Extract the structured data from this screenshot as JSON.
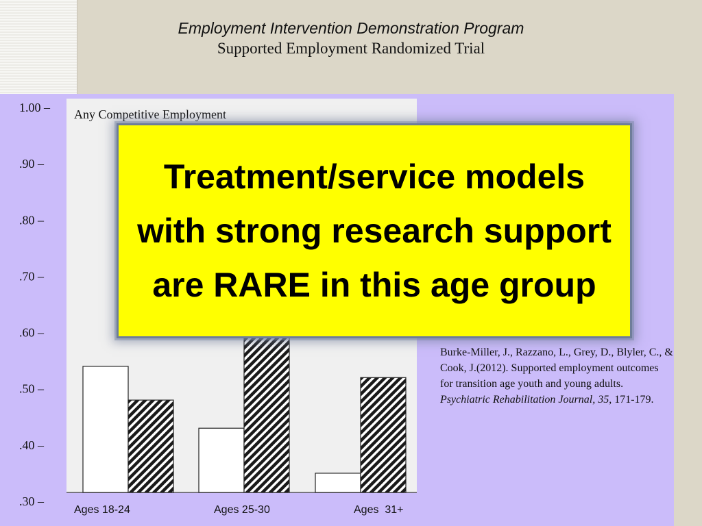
{
  "title": {
    "line1": "Employment Intervention Demonstration Program",
    "line2": "Supported Employment Randomized Trial"
  },
  "callout": {
    "text": "Treatment/service models with strong research support are RARE in this age group"
  },
  "citation": {
    "authors": "Burke-Miller, J., Razzano, L., Grey, D., Blyler, C., & Cook, J.(2012). Supported employment outcomes for transition age youth and young adults.",
    "journal": "Psychiatric Rehabilitation Journal, 35",
    "pages": ", 171-179."
  },
  "chart_data": {
    "type": "bar",
    "title": "Any Competitive Employment",
    "categories": [
      "Ages 18-24",
      "Ages 25-30",
      "Ages  31+"
    ],
    "series": [
      {
        "values": [
          0.54,
          0.43,
          0.35
        ],
        "fill": "#ffffff"
      },
      {
        "values": [
          0.48,
          0.6,
          0.52
        ],
        "fill": "hatch"
      }
    ],
    "y_ticks": [
      {
        "value": 1.0,
        "label": "1.00 –"
      },
      {
        "value": 0.9,
        "label": ".90 –"
      },
      {
        "value": 0.8,
        "label": ".80 –"
      },
      {
        "value": 0.7,
        "label": ".70 –"
      },
      {
        "value": 0.6,
        "label": ".60 –"
      },
      {
        "value": 0.5,
        "label": ".50 –"
      },
      {
        "value": 0.4,
        "label": ".40 –"
      },
      {
        "value": 0.3,
        "label": ".30 –"
      }
    ],
    "ylim": [
      0.3,
      1.0
    ],
    "grid": false
  }
}
